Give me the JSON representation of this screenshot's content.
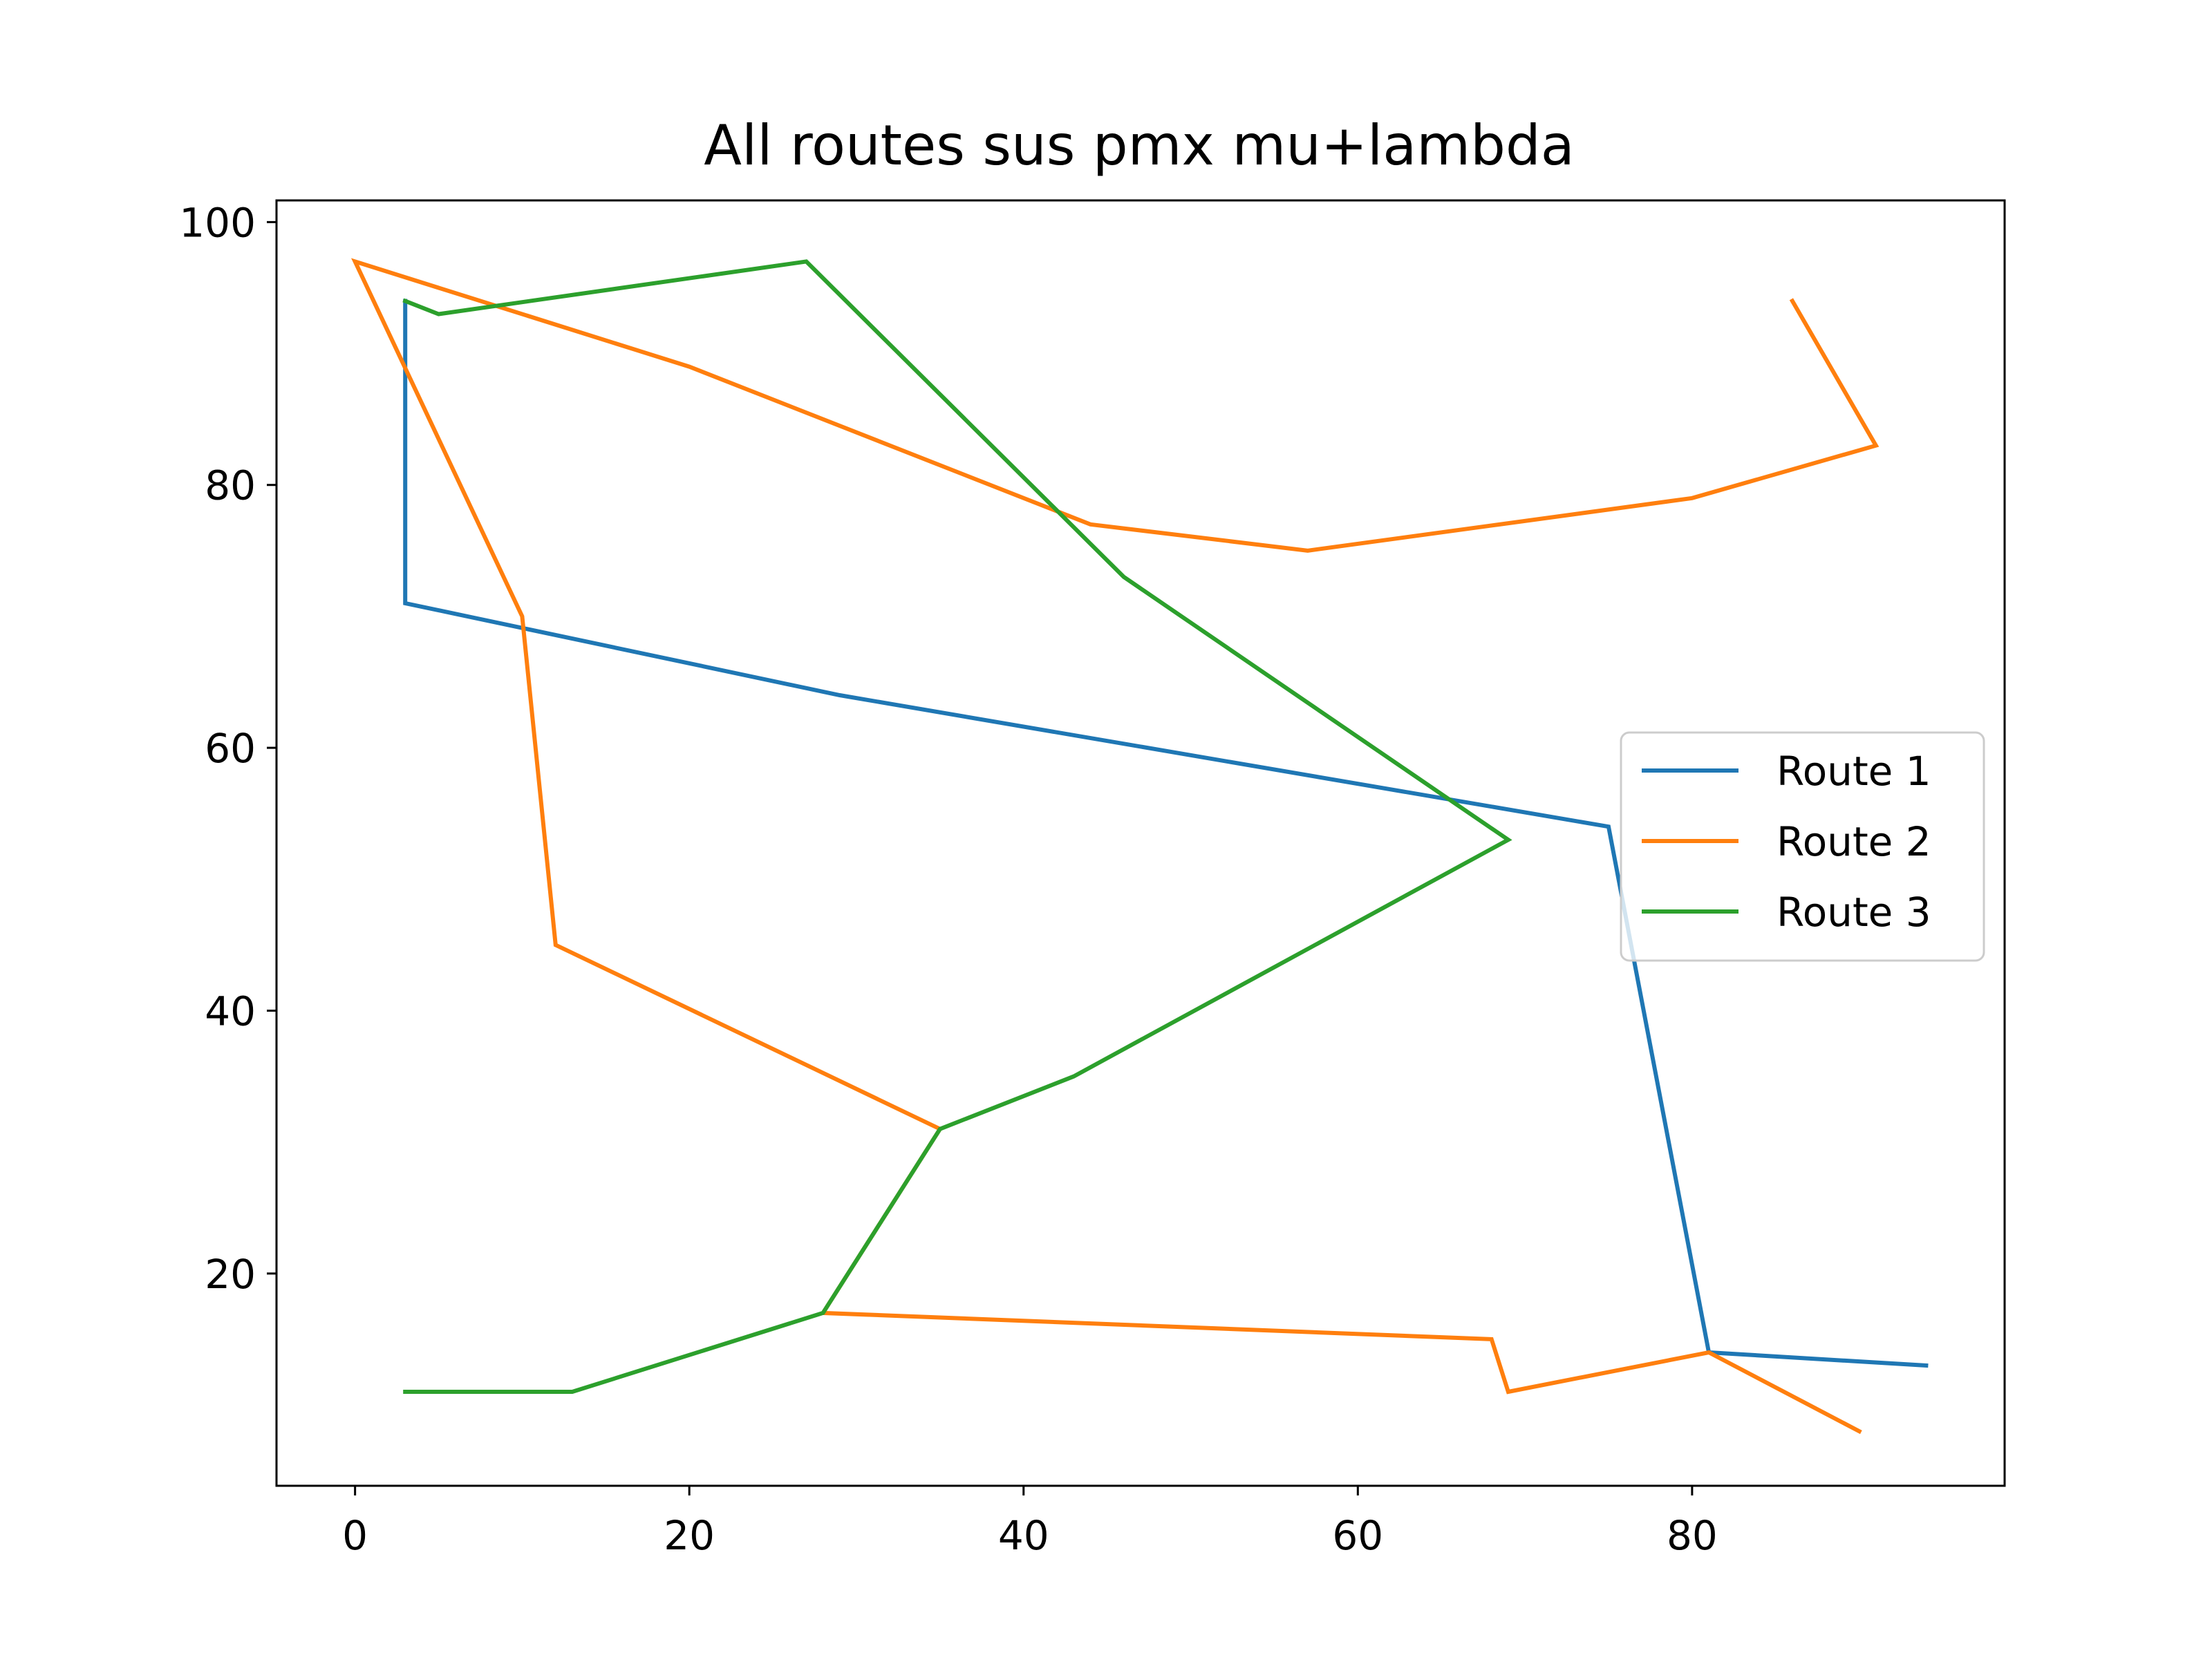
{
  "chart_data": {
    "type": "line",
    "title": "All routes sus pmx mu+lambda",
    "xlabel": "",
    "ylabel": "",
    "xlim": [
      -4.7,
      98.7
    ],
    "ylim": [
      3.85,
      101.65
    ],
    "xticks": [
      0,
      20,
      40,
      60,
      80
    ],
    "yticks": [
      20,
      40,
      60,
      80,
      100
    ],
    "grid": false,
    "legend_position": "center-right",
    "series": [
      {
        "name": "Route 1",
        "color": "#1f77b4",
        "points": [
          [
            3,
            94
          ],
          [
            3,
            71
          ],
          [
            29,
            64
          ],
          [
            75,
            54
          ],
          [
            81,
            14
          ],
          [
            94,
            13
          ]
        ]
      },
      {
        "name": "Route 2",
        "color": "#ff7f0e",
        "points": [
          [
            86,
            94
          ],
          [
            91,
            83
          ],
          [
            80,
            79
          ],
          [
            57,
            75
          ],
          [
            44,
            77
          ],
          [
            20,
            89
          ],
          [
            0,
            97
          ],
          [
            10,
            70
          ],
          [
            12,
            45
          ],
          [
            35,
            31
          ],
          [
            28,
            17
          ],
          [
            68,
            15
          ],
          [
            69,
            11
          ],
          [
            81,
            14
          ],
          [
            90,
            8
          ]
        ]
      },
      {
        "name": "Route 3",
        "color": "#2ca02c",
        "points": [
          [
            3,
            11
          ],
          [
            13,
            11
          ],
          [
            28,
            17
          ],
          [
            35,
            31
          ],
          [
            43,
            35
          ],
          [
            69,
            53
          ],
          [
            46,
            73
          ],
          [
            27,
            97
          ],
          [
            5,
            93
          ],
          [
            3,
            94
          ]
        ]
      }
    ]
  }
}
